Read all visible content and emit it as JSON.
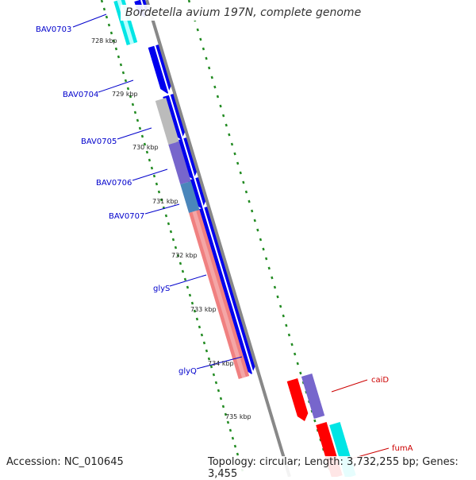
{
  "title": "Bordetella avium 197N, complete genome",
  "footer": {
    "accession": "Accession: NC_010645",
    "summary": "Topology: circular; Length: 3,732,255 bp; Genes: 3,455"
  },
  "scale": {
    "ticks": [
      "728 kbp",
      "729 kbp",
      "730 kbp",
      "731 kbp",
      "732 kbp",
      "733 kbp",
      "734 kbp",
      "735 kbp"
    ]
  },
  "genes": [
    {
      "label": "BAV0703",
      "color": "#0000cc"
    },
    {
      "label": "BAV0704",
      "color": "#0000cc"
    },
    {
      "label": "BAV0705",
      "color": "#0000cc"
    },
    {
      "label": "BAV0706",
      "color": "#0000cc"
    },
    {
      "label": "BAV0707",
      "color": "#0000cc"
    },
    {
      "label": "glyS",
      "color": "#0000cc"
    },
    {
      "label": "glyQ",
      "color": "#0000cc"
    },
    {
      "label": "caiD",
      "color": "#cc0000"
    },
    {
      "label": "fumA",
      "color": "#cc0000"
    }
  ],
  "colors": {
    "cds": "#0000ee",
    "backbone": "#888888",
    "cyan_feature": "#00e5e5",
    "gray_feature": "#bbbbbb",
    "purple_feature": "#7766cc",
    "steel_feature": "#4a86bb",
    "salmon_feature": "#f08080",
    "red_feature": "#ff0000",
    "gc_dots": "#228b22"
  }
}
